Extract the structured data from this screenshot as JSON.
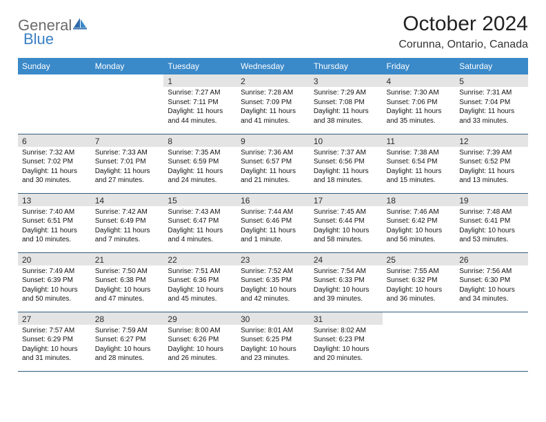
{
  "logo": {
    "text1": "General",
    "text2": "Blue"
  },
  "title": "October 2024",
  "location": "Corunna, Ontario, Canada",
  "colors": {
    "header_bg": "#3a89c9",
    "header_text": "#ffffff",
    "row_border": "#2f5a7a",
    "shade_bg": "#e4e4e4",
    "logo_gray": "#6b6b6b",
    "logo_blue": "#3a7fc4"
  },
  "day_headers": [
    "Sunday",
    "Monday",
    "Tuesday",
    "Wednesday",
    "Thursday",
    "Friday",
    "Saturday"
  ],
  "weeks": [
    [
      null,
      null,
      {
        "n": "1",
        "sunrise": "7:27 AM",
        "sunset": "7:11 PM",
        "daylight": "11 hours and 44 minutes."
      },
      {
        "n": "2",
        "sunrise": "7:28 AM",
        "sunset": "7:09 PM",
        "daylight": "11 hours and 41 minutes."
      },
      {
        "n": "3",
        "sunrise": "7:29 AM",
        "sunset": "7:08 PM",
        "daylight": "11 hours and 38 minutes."
      },
      {
        "n": "4",
        "sunrise": "7:30 AM",
        "sunset": "7:06 PM",
        "daylight": "11 hours and 35 minutes."
      },
      {
        "n": "5",
        "sunrise": "7:31 AM",
        "sunset": "7:04 PM",
        "daylight": "11 hours and 33 minutes."
      }
    ],
    [
      {
        "n": "6",
        "sunrise": "7:32 AM",
        "sunset": "7:02 PM",
        "daylight": "11 hours and 30 minutes."
      },
      {
        "n": "7",
        "sunrise": "7:33 AM",
        "sunset": "7:01 PM",
        "daylight": "11 hours and 27 minutes."
      },
      {
        "n": "8",
        "sunrise": "7:35 AM",
        "sunset": "6:59 PM",
        "daylight": "11 hours and 24 minutes."
      },
      {
        "n": "9",
        "sunrise": "7:36 AM",
        "sunset": "6:57 PM",
        "daylight": "11 hours and 21 minutes."
      },
      {
        "n": "10",
        "sunrise": "7:37 AM",
        "sunset": "6:56 PM",
        "daylight": "11 hours and 18 minutes."
      },
      {
        "n": "11",
        "sunrise": "7:38 AM",
        "sunset": "6:54 PM",
        "daylight": "11 hours and 15 minutes."
      },
      {
        "n": "12",
        "sunrise": "7:39 AM",
        "sunset": "6:52 PM",
        "daylight": "11 hours and 13 minutes."
      }
    ],
    [
      {
        "n": "13",
        "sunrise": "7:40 AM",
        "sunset": "6:51 PM",
        "daylight": "11 hours and 10 minutes."
      },
      {
        "n": "14",
        "sunrise": "7:42 AM",
        "sunset": "6:49 PM",
        "daylight": "11 hours and 7 minutes."
      },
      {
        "n": "15",
        "sunrise": "7:43 AM",
        "sunset": "6:47 PM",
        "daylight": "11 hours and 4 minutes."
      },
      {
        "n": "16",
        "sunrise": "7:44 AM",
        "sunset": "6:46 PM",
        "daylight": "11 hours and 1 minute."
      },
      {
        "n": "17",
        "sunrise": "7:45 AM",
        "sunset": "6:44 PM",
        "daylight": "10 hours and 58 minutes."
      },
      {
        "n": "18",
        "sunrise": "7:46 AM",
        "sunset": "6:42 PM",
        "daylight": "10 hours and 56 minutes."
      },
      {
        "n": "19",
        "sunrise": "7:48 AM",
        "sunset": "6:41 PM",
        "daylight": "10 hours and 53 minutes."
      }
    ],
    [
      {
        "n": "20",
        "sunrise": "7:49 AM",
        "sunset": "6:39 PM",
        "daylight": "10 hours and 50 minutes."
      },
      {
        "n": "21",
        "sunrise": "7:50 AM",
        "sunset": "6:38 PM",
        "daylight": "10 hours and 47 minutes."
      },
      {
        "n": "22",
        "sunrise": "7:51 AM",
        "sunset": "6:36 PM",
        "daylight": "10 hours and 45 minutes."
      },
      {
        "n": "23",
        "sunrise": "7:52 AM",
        "sunset": "6:35 PM",
        "daylight": "10 hours and 42 minutes."
      },
      {
        "n": "24",
        "sunrise": "7:54 AM",
        "sunset": "6:33 PM",
        "daylight": "10 hours and 39 minutes."
      },
      {
        "n": "25",
        "sunrise": "7:55 AM",
        "sunset": "6:32 PM",
        "daylight": "10 hours and 36 minutes."
      },
      {
        "n": "26",
        "sunrise": "7:56 AM",
        "sunset": "6:30 PM",
        "daylight": "10 hours and 34 minutes."
      }
    ],
    [
      {
        "n": "27",
        "sunrise": "7:57 AM",
        "sunset": "6:29 PM",
        "daylight": "10 hours and 31 minutes."
      },
      {
        "n": "28",
        "sunrise": "7:59 AM",
        "sunset": "6:27 PM",
        "daylight": "10 hours and 28 minutes."
      },
      {
        "n": "29",
        "sunrise": "8:00 AM",
        "sunset": "6:26 PM",
        "daylight": "10 hours and 26 minutes."
      },
      {
        "n": "30",
        "sunrise": "8:01 AM",
        "sunset": "6:25 PM",
        "daylight": "10 hours and 23 minutes."
      },
      {
        "n": "31",
        "sunrise": "8:02 AM",
        "sunset": "6:23 PM",
        "daylight": "10 hours and 20 minutes."
      },
      null,
      null
    ]
  ],
  "labels": {
    "sunrise": "Sunrise: ",
    "sunset": "Sunset: ",
    "daylight": "Daylight: "
  }
}
